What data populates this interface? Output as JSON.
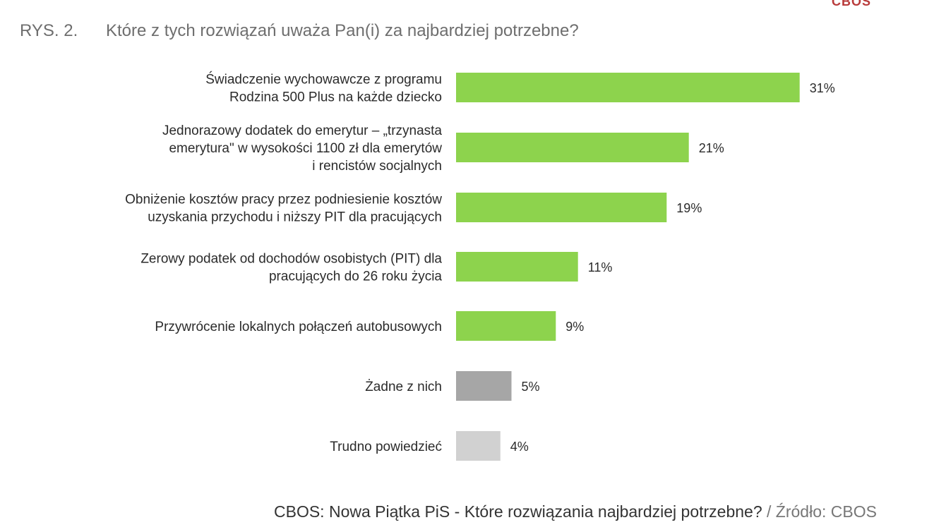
{
  "logo_text": "CBOS",
  "figure": {
    "number": "RYS. 2.",
    "question": "Które z tych rozwiązań uważa Pan(i) za najbardziej potrzebne?"
  },
  "caption": {
    "text": "CBOS: Nowa Piątka PiS - Które rozwiązania najbardziej potrzebne?",
    "source": " / Źródło: CBOS"
  },
  "colors": {
    "green": "#8dd34d",
    "dark_gray": "#a6a6a6",
    "light_gray": "#d1d1d1"
  },
  "chart_data": {
    "type": "bar",
    "orientation": "horizontal",
    "title": "Które z tych rozwiązań uważa Pan(i) za najbardziej potrzebne?",
    "xlim": [
      0,
      31
    ],
    "grid": false,
    "categories": [
      [
        "Świadczenie wychowawcze z programu",
        "Rodzina 500 Plus na każde dziecko"
      ],
      [
        "Jednorazowy dodatek do emerytur – „trzynasta",
        "emerytura\" w wysokości 1100 zł dla emerytów",
        "i rencistów socjalnych"
      ],
      [
        "Obniżenie kosztów pracy przez podniesienie kosztów",
        "uzyskania przychodu i niższy PIT dla pracujących"
      ],
      [
        "Zerowy podatek od dochodów osobistych (PIT) dla",
        "pracujących do 26 roku życia"
      ],
      [
        "Przywrócenie lokalnych połączeń autobusowych"
      ],
      [
        "Żadne z nich"
      ],
      [
        "Trudno powiedzieć"
      ]
    ],
    "values": [
      31,
      21,
      19,
      11,
      9,
      5,
      4
    ],
    "value_labels": [
      "31%",
      "21%",
      "19%",
      "11%",
      "9%",
      "5%",
      "4%"
    ],
    "bar_colors": [
      "#8dd34d",
      "#8dd34d",
      "#8dd34d",
      "#8dd34d",
      "#8dd34d",
      "#a6a6a6",
      "#d1d1d1"
    ]
  }
}
